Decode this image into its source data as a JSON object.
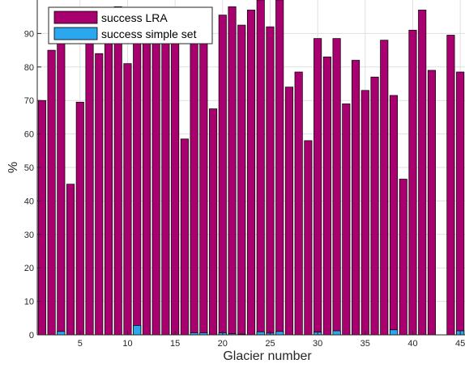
{
  "chart_data": {
    "type": "bar",
    "title": "",
    "xlabel": "Glacier number",
    "ylabel": "%",
    "xlim": [
      0.5,
      45.5
    ],
    "ylim": [
      0,
      100
    ],
    "xticks": [
      5,
      10,
      15,
      20,
      25,
      30,
      35,
      40,
      45
    ],
    "yticks": [
      0,
      10,
      20,
      30,
      40,
      50,
      60,
      70,
      80,
      90
    ],
    "grid": true,
    "legend_position": "top-left",
    "x": [
      1,
      2,
      3,
      4,
      5,
      6,
      7,
      8,
      9,
      10,
      11,
      12,
      13,
      14,
      15,
      16,
      17,
      18,
      19,
      20,
      21,
      22,
      23,
      24,
      25,
      26,
      27,
      28,
      29,
      30,
      31,
      32,
      33,
      34,
      35,
      36,
      37,
      38,
      39,
      40,
      41,
      42,
      43,
      44,
      45
    ],
    "series": [
      {
        "name": "success LRA",
        "color": "#a8006e",
        "values": [
          70,
          85,
          88,
          45,
          69.5,
          89,
          84,
          88,
          98,
          81,
          88,
          97,
          93,
          89,
          88,
          58.5,
          89,
          89,
          67.5,
          95.5,
          98,
          92.5,
          97,
          100,
          92,
          100,
          74,
          78.5,
          58,
          88.5,
          83,
          88.5,
          69,
          82,
          73,
          77,
          88,
          71.5,
          46.5,
          91,
          97,
          79,
          0,
          89.5,
          78.5
        ]
      },
      {
        "name": "success simple set",
        "color": "#2aa7ee",
        "values": [
          0,
          0,
          1,
          0,
          0,
          0,
          0,
          0,
          0,
          0,
          2.8,
          0,
          0,
          0,
          0,
          0,
          0.6,
          0.6,
          0,
          0.6,
          0.3,
          0.2,
          0,
          0.9,
          0.5,
          1,
          0,
          0,
          0,
          0.8,
          0,
          1.2,
          0,
          0,
          0,
          0,
          0,
          1.5,
          0,
          0,
          0,
          0,
          0,
          0,
          1.2
        ]
      }
    ]
  },
  "colors": {
    "lra": "#a8006e",
    "simple": "#2aa7ee",
    "grid": "#dfdfdf",
    "axis": "#262626"
  }
}
